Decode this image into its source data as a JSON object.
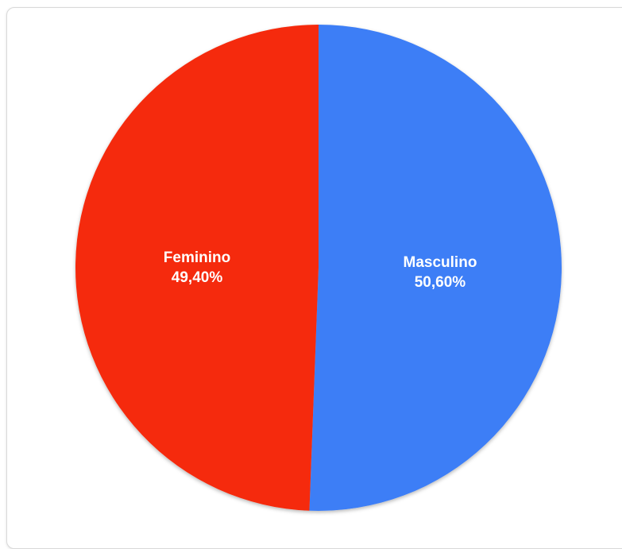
{
  "chart_data": {
    "type": "pie",
    "slices": [
      {
        "label": "Masculino",
        "value": 50.6,
        "value_label": "50,60%",
        "color": "#3d7ef6"
      },
      {
        "label": "Feminino",
        "value": 49.4,
        "value_label": "49,40%",
        "color": "#f52a0a"
      }
    ],
    "start": "12 o'clock",
    "direction": "clockwise",
    "legend": "none"
  }
}
